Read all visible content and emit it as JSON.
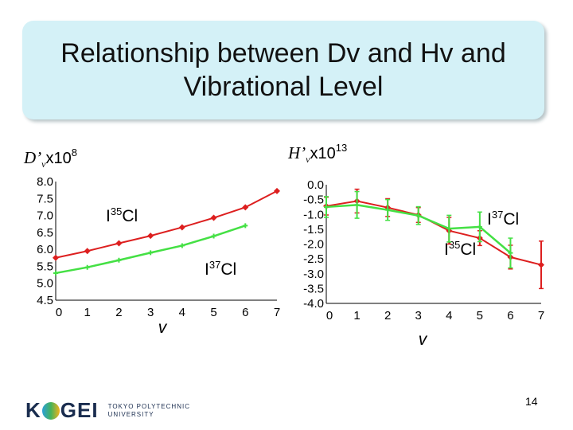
{
  "slide": {
    "title": "Relationship between Dv and Hv and Vibrational Level",
    "page_number": "14"
  },
  "left_chart": {
    "symbol": "D’",
    "subscript": "v",
    "multiplier": "x10",
    "exponent": "8"
  },
  "right_chart": {
    "symbol": "H’",
    "subscript": "v",
    "multiplier": "x10",
    "exponent": "13"
  },
  "logo": {
    "word_left": "K",
    "word_right": "GEI",
    "line1": "TOKYO POLYTECHNIC",
    "line2": "UNIVERSITY"
  },
  "colors": {
    "series_35": "#dd1f1f",
    "series_37": "#44e044",
    "title_box": "#d4f1f7"
  },
  "chart_data": [
    {
      "type": "line",
      "title": "D'v x10^8",
      "xlabel": "v",
      "ylabel": "D’v x10^8",
      "x": [
        0,
        1,
        2,
        3,
        4,
        5,
        6,
        7
      ],
      "xlim": [
        0,
        7
      ],
      "ylim": [
        4.5,
        8.0
      ],
      "xticks": [
        "0",
        "1",
        "2",
        "3",
        "4",
        "5",
        "6",
        "7"
      ],
      "yticks": [
        "8.0",
        "7.5",
        "7.0",
        "6.5",
        "6.0",
        "5.5",
        "5.0",
        "4.5"
      ],
      "grid": false,
      "series": [
        {
          "name": "I35Cl",
          "label_base": "I",
          "label_sup": "35",
          "label_tail": "Cl",
          "color": "#dd1f1f",
          "marker": "diamond",
          "x": [
            0,
            1,
            2,
            3,
            4,
            5,
            6,
            7
          ],
          "values": [
            5.75,
            5.95,
            6.18,
            6.4,
            6.65,
            6.93,
            7.24,
            7.72
          ]
        },
        {
          "name": "I37Cl",
          "label_base": "I",
          "label_sup": "37",
          "label_tail": "Cl",
          "color": "#44e044",
          "marker": "plus",
          "x": [
            0,
            1,
            2,
            3,
            4,
            5,
            6
          ],
          "values": [
            5.3,
            5.47,
            5.68,
            5.9,
            6.11,
            6.39,
            6.7
          ]
        }
      ]
    },
    {
      "type": "line",
      "title": "H'v x10^13",
      "xlabel": "v",
      "ylabel": "H’v x10^13",
      "x": [
        0,
        1,
        2,
        3,
        4,
        5,
        6,
        7
      ],
      "xlim": [
        0,
        7
      ],
      "ylim": [
        -4.0,
        0.0
      ],
      "xticks": [
        "0",
        "1",
        "2",
        "3",
        "4",
        "5",
        "6",
        "7"
      ],
      "yticks": [
        "0.0",
        "-0.5",
        "-1.0",
        "-1.5",
        "-2.0",
        "-2.5",
        "-3.0",
        "-3.5",
        "-4.0"
      ],
      "grid": false,
      "error_bars": true,
      "series": [
        {
          "name": "I35Cl",
          "label_base": "I",
          "label_sup": "35",
          "label_tail": "Cl",
          "color": "#dd1f1f",
          "marker": "diamond",
          "x": [
            0,
            1,
            2,
            3,
            4,
            5,
            6,
            7
          ],
          "values": [
            -0.72,
            -0.55,
            -0.77,
            -1.02,
            -1.55,
            -1.8,
            -2.44,
            -2.7
          ],
          "errors": [
            0.3,
            0.4,
            0.3,
            0.25,
            0.45,
            0.25,
            0.4,
            0.8
          ]
        },
        {
          "name": "I37Cl",
          "label_base": "I",
          "label_sup": "37",
          "label_tail": "Cl",
          "color": "#44e044",
          "marker": "plus",
          "x": [
            0,
            1,
            2,
            3,
            4,
            5,
            6
          ],
          "values": [
            -0.75,
            -0.68,
            -0.85,
            -1.04,
            -1.48,
            -1.42,
            -2.3
          ],
          "errors": [
            0.35,
            0.45,
            0.35,
            0.3,
            0.45,
            0.5,
            0.5
          ]
        }
      ]
    }
  ]
}
